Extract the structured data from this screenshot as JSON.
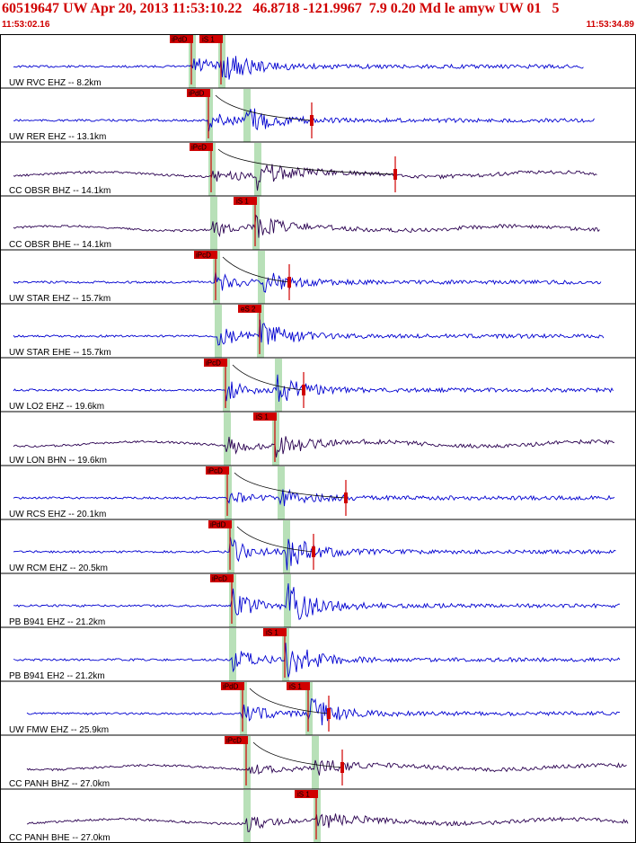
{
  "header": {
    "title": "60519647 UW Apr 20, 2013 11:53:10.22   46.8718 -121.9967  7.9 0.20 Md le amyw UW 01   5",
    "start_time": "11:53:02.16",
    "end_time": "11:53:34.89"
  },
  "colors": {
    "vertical_trace": "#0000d0",
    "horizontal_trace": "#2a0050",
    "pick": "#d00000",
    "highlight": "#b8e0b8",
    "annotation": "#d00000"
  },
  "traces": [
    {
      "label": "UW RVC EHZ -- 8.2km",
      "p_label": "iPdD",
      "s_label": "iS 1",
      "comp": "z"
    },
    {
      "label": "UW RER EHZ -- 13.1km",
      "p_label": "iPdD",
      "s_label": "",
      "comp": "z"
    },
    {
      "label": "CC OBSR BHZ -- 14.1km",
      "p_label": "iPcD",
      "s_label": "",
      "comp": "h"
    },
    {
      "label": "CC OBSR BHE -- 14.1km",
      "p_label": "",
      "s_label": "iS 1",
      "comp": "h"
    },
    {
      "label": "UW STAR EHZ -- 15.7km",
      "p_label": "iPcD",
      "s_label": "",
      "comp": "z"
    },
    {
      "label": "UW STAR EHE -- 15.7km",
      "p_label": "",
      "s_label": "eS 2",
      "comp": "z"
    },
    {
      "label": "UW LO2 EHZ -- 19.6km",
      "p_label": "iPcD",
      "s_label": "",
      "comp": "z"
    },
    {
      "label": "UW LON BHN -- 19.6km",
      "p_label": "",
      "s_label": "iS 1",
      "comp": "h"
    },
    {
      "label": "UW RCS EHZ -- 20.1km",
      "p_label": "iPcD",
      "s_label": "",
      "comp": "z"
    },
    {
      "label": "UW RCM EHZ -- 20.5km",
      "p_label": "iPdD",
      "s_label": "",
      "comp": "z"
    },
    {
      "label": "PB B941 EHZ -- 21.2km",
      "p_label": "iPcD",
      "s_label": "",
      "comp": "z"
    },
    {
      "label": "PB B941 EH2 -- 21.2km",
      "p_label": "",
      "s_label": "iS 1",
      "comp": "z"
    },
    {
      "label": "UW FMW EHZ -- 25.9km",
      "p_label": "iPdD",
      "s_label": "iS 1",
      "comp": "z"
    },
    {
      "label": "CC PANH BHZ -- 27.0km",
      "p_label": "iPcD",
      "s_label": "",
      "comp": "h"
    },
    {
      "label": "CC PANH BHE -- 27.0km",
      "p_label": "",
      "s_label": "iS 1",
      "comp": "h"
    }
  ]
}
